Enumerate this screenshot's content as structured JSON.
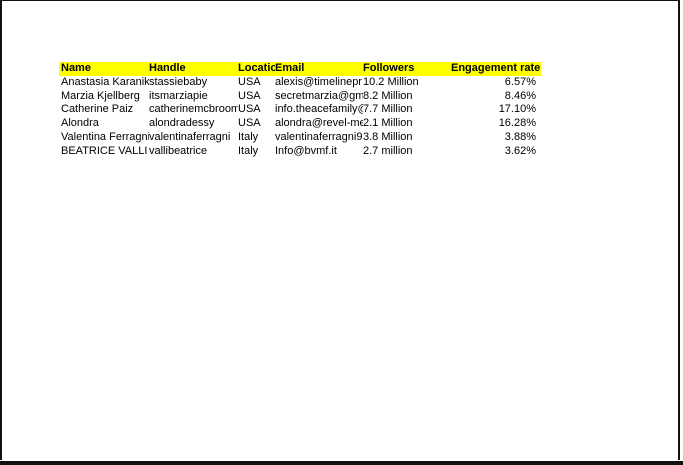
{
  "table": {
    "headers": [
      "Name",
      "Handle",
      "Location",
      "Email",
      "Followers",
      "Engagement rate"
    ],
    "rows": [
      [
        "Anastasia Karanikolaou",
        "stassiebaby",
        "USA",
        "alexis@timelinepr",
        "10.2 Million",
        "6.57%"
      ],
      [
        "Marzia Kjellberg",
        "itsmarziapie",
        "USA",
        "secretmarzia@gmail",
        "8.2 Million",
        "8.46%"
      ],
      [
        "Catherine Paiz",
        "catherinemcbroom",
        "USA",
        "info.theacefamily@",
        "7.7 Million",
        "17.10%"
      ],
      [
        "Alondra",
        "alondradessy",
        "USA",
        "alondra@revel-media",
        "2.1 Million",
        "16.28%"
      ],
      [
        "Valentina Ferragni",
        "valentinaferragni",
        "Italy",
        "valentinaferragni9",
        "3.8 Million",
        "3.88%"
      ],
      [
        "BEATRICE VALLI",
        "vallibeatrice",
        "Italy",
        "Info@bvmf.it",
        "2.7 million",
        "3.62%"
      ]
    ]
  },
  "colors": {
    "header_fill": "#ffff00"
  }
}
